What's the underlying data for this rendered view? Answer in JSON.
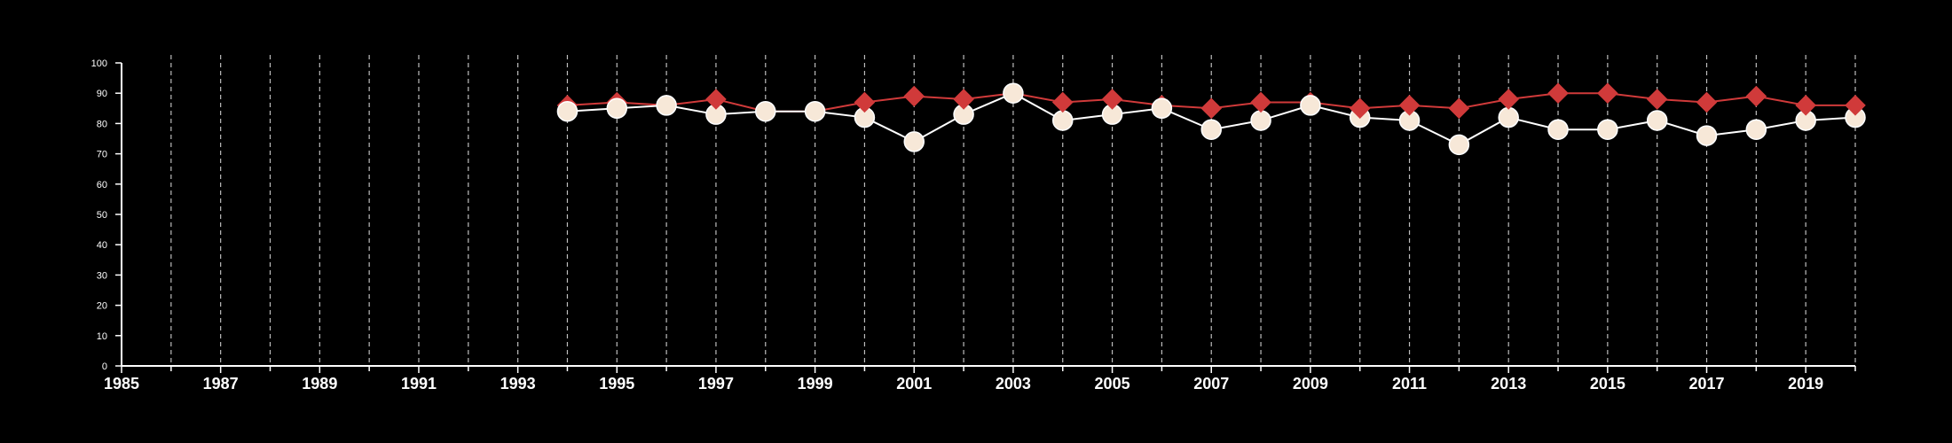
{
  "chart_data": {
    "type": "line",
    "title": "",
    "xlabel": "",
    "ylabel": "",
    "xlim": [
      1985,
      2020
    ],
    "ylim": [
      0,
      100
    ],
    "y_ticks": [
      0,
      10,
      20,
      30,
      40,
      50,
      60,
      70,
      80,
      90,
      100
    ],
    "x_ticks": [
      1985,
      1987,
      1989,
      1991,
      1993,
      1995,
      1997,
      1999,
      2001,
      2003,
      2005,
      2007,
      2009,
      2011,
      2013,
      2015,
      2017,
      2019
    ],
    "grid": "vertical dashed gridlines at every year",
    "legend": "none",
    "background": "#000000",
    "x": [
      1994,
      1995,
      1996,
      1997,
      1998,
      1999,
      2000,
      2001,
      2002,
      2003,
      2004,
      2005,
      2006,
      2007,
      2008,
      2009,
      2010,
      2011,
      2012,
      2013,
      2014,
      2015,
      2016,
      2017,
      2018,
      2019,
      2020
    ],
    "series": [
      {
        "marker": "diamond",
        "color": "#d03a3a",
        "line_color": "#d03a3a",
        "values": [
          86,
          87,
          86,
          88,
          84,
          84,
          87,
          89,
          88,
          90,
          87,
          88,
          86,
          85,
          87,
          87,
          85,
          86,
          85,
          88,
          90,
          90,
          88,
          87,
          89,
          86,
          86
        ]
      },
      {
        "marker": "circle",
        "color": "#f7e8d8",
        "line_color": "#ffffff",
        "values": [
          84,
          85,
          86,
          83,
          84,
          84,
          82,
          74,
          83,
          90,
          81,
          83,
          85,
          78,
          81,
          86,
          82,
          81,
          73,
          82,
          78,
          78,
          81,
          76,
          78,
          81,
          82
        ]
      }
    ]
  }
}
